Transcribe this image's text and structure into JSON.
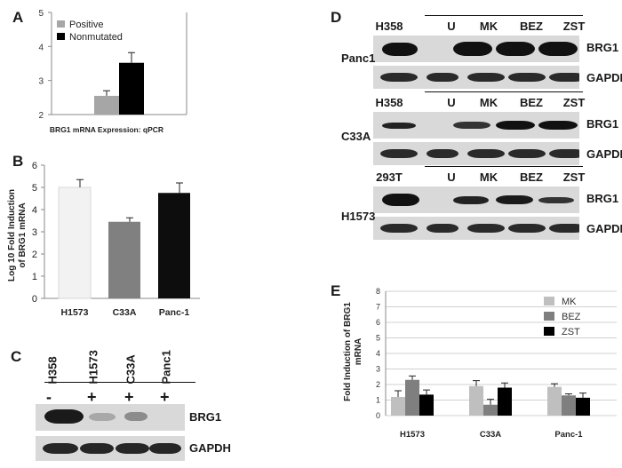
{
  "panels": {
    "A": {
      "letter": "A",
      "legend": [
        "Positive",
        "Nonmutated"
      ],
      "xlabel": "BRG1 mRNA Expression: qPCR",
      "colors": {
        "Positive": "#a6a6a6",
        "Nonmutated": "#000000"
      }
    },
    "B": {
      "letter": "B",
      "ylabel": "Log 10 Fold Induction of BRG1 mRNA",
      "colors": [
        "#f2f2f2",
        "#808080",
        "#0d0d0d"
      ]
    },
    "C": {
      "letter": "C",
      "lanes": [
        "H358",
        "H1573",
        "C33A",
        "Panc1"
      ],
      "signs": [
        "-",
        "+",
        "+",
        "+"
      ],
      "blots": [
        "BRG1",
        "GAPDH"
      ]
    },
    "D": {
      "letter": "D",
      "groups": [
        {
          "cell": "Panc1",
          "lanes": [
            "H358",
            "U",
            "MK",
            "BEZ",
            "ZST"
          ],
          "blots": [
            "BRG1",
            "GAPDH"
          ]
        },
        {
          "cell": "C33A",
          "lanes": [
            "H358",
            "U",
            "MK",
            "BEZ",
            "ZST"
          ],
          "blots": [
            "BRG1",
            "GAPDH"
          ]
        },
        {
          "cell": "H1573",
          "lanes": [
            "293T",
            "U",
            "MK",
            "BEZ",
            "ZST"
          ],
          "blots": [
            "BRG1",
            "GAPDH"
          ]
        }
      ]
    },
    "E": {
      "letter": "E",
      "ylabel": "Fold Induction of BRG1 mRNA",
      "colors": {
        "MK": "#bfbfbf",
        "BEZ": "#7f7f7f",
        "ZST": "#000000"
      }
    }
  },
  "chart_data": [
    {
      "type": "bar",
      "categories": [
        ""
      ],
      "series": [
        {
          "name": "Positive",
          "values": [
            2.55
          ],
          "errors": [
            0.15
          ]
        },
        {
          "name": "Nonmutated",
          "values": [
            3.52
          ],
          "errors": [
            0.3
          ]
        }
      ],
      "xlabel": "BRG1 mRNA Expression: qPCR",
      "ylim": [
        2,
        5
      ],
      "yticks": [
        "2",
        "3",
        "4",
        "5"
      ],
      "grid": false,
      "legend": "top-left"
    },
    {
      "type": "bar",
      "categories": [
        "H1573",
        "C33A",
        "Panc-1"
      ],
      "values": [
        5.0,
        3.45,
        4.75
      ],
      "errors": [
        0.35,
        0.18,
        0.45
      ],
      "ylabel": "Log 10 Fold Induction of BRG1 mRNA",
      "ylim": [
        0,
        6
      ],
      "yticks": [
        "0",
        "1",
        "2",
        "3",
        "4",
        "5",
        "6"
      ]
    },
    {
      "type": "bar",
      "categories": [
        "H1573",
        "C33A",
        "Panc-1"
      ],
      "series": [
        {
          "name": "MK",
          "values": [
            1.2,
            1.9,
            1.85
          ],
          "errors": [
            0.4,
            0.35,
            0.2
          ]
        },
        {
          "name": "BEZ",
          "values": [
            2.3,
            0.7,
            1.3
          ],
          "errors": [
            0.25,
            0.35,
            0.1
          ]
        },
        {
          "name": "ZST",
          "values": [
            1.35,
            1.8,
            1.15
          ],
          "errors": [
            0.3,
            0.3,
            0.3
          ]
        }
      ],
      "ylabel": "Fold Induction of BRG1 mRNA",
      "ylim": [
        0,
        8
      ],
      "yticks": [
        "0",
        "1",
        "2",
        "3",
        "4",
        "5",
        "6",
        "7",
        "8"
      ],
      "grid": true,
      "legend": "top-right"
    }
  ]
}
